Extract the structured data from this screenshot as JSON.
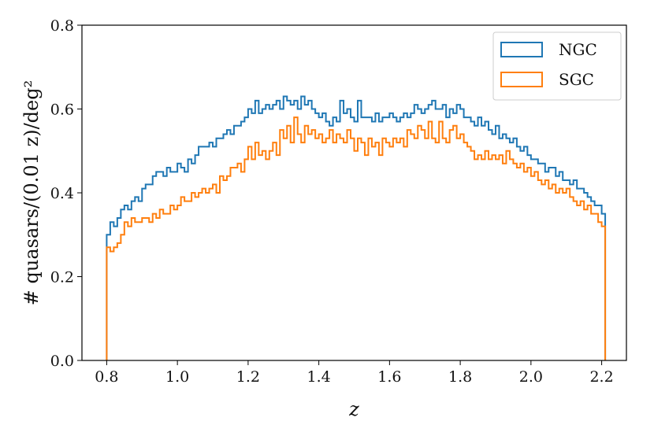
{
  "chart_data": {
    "type": "histogram-step",
    "xlabel": "z",
    "ylabel": "# quasars/(0.01 z)/deg²",
    "xlim": [
      0.73,
      2.27
    ],
    "ylim": [
      0.0,
      0.8
    ],
    "xticks": [
      "0.8",
      "1.0",
      "1.2",
      "1.4",
      "1.6",
      "1.8",
      "2.0",
      "2.2"
    ],
    "yticks": [
      "0.0",
      "0.2",
      "0.4",
      "0.6",
      "0.8"
    ],
    "bin_start": 0.8,
    "bin_width": 0.01,
    "grid": false,
    "legend_position": "top-right",
    "series": [
      {
        "name": "NGC",
        "color": "#1f77b4",
        "values": [
          0.3,
          0.33,
          0.32,
          0.34,
          0.36,
          0.37,
          0.36,
          0.38,
          0.39,
          0.38,
          0.41,
          0.42,
          0.42,
          0.44,
          0.45,
          0.45,
          0.44,
          0.46,
          0.45,
          0.45,
          0.47,
          0.46,
          0.45,
          0.48,
          0.47,
          0.49,
          0.51,
          0.51,
          0.51,
          0.52,
          0.51,
          0.53,
          0.53,
          0.54,
          0.55,
          0.54,
          0.56,
          0.56,
          0.57,
          0.58,
          0.6,
          0.59,
          0.62,
          0.59,
          0.6,
          0.61,
          0.6,
          0.61,
          0.62,
          0.6,
          0.63,
          0.62,
          0.61,
          0.62,
          0.6,
          0.63,
          0.61,
          0.62,
          0.6,
          0.59,
          0.58,
          0.59,
          0.57,
          0.56,
          0.58,
          0.57,
          0.62,
          0.59,
          0.6,
          0.58,
          0.57,
          0.62,
          0.58,
          0.58,
          0.58,
          0.57,
          0.59,
          0.57,
          0.58,
          0.58,
          0.59,
          0.58,
          0.57,
          0.58,
          0.59,
          0.58,
          0.59,
          0.61,
          0.6,
          0.59,
          0.6,
          0.61,
          0.62,
          0.6,
          0.6,
          0.61,
          0.58,
          0.6,
          0.59,
          0.61,
          0.6,
          0.58,
          0.58,
          0.57,
          0.56,
          0.58,
          0.56,
          0.57,
          0.55,
          0.54,
          0.56,
          0.53,
          0.54,
          0.53,
          0.52,
          0.53,
          0.51,
          0.5,
          0.51,
          0.49,
          0.48,
          0.48,
          0.47,
          0.47,
          0.45,
          0.46,
          0.46,
          0.44,
          0.45,
          0.43,
          0.43,
          0.42,
          0.43,
          0.41,
          0.41,
          0.4,
          0.39,
          0.38,
          0.37,
          0.37,
          0.35
        ]
      },
      {
        "name": "SGC",
        "color": "#ff7f0e",
        "values": [
          0.27,
          0.26,
          0.27,
          0.28,
          0.3,
          0.33,
          0.32,
          0.34,
          0.33,
          0.33,
          0.34,
          0.34,
          0.33,
          0.35,
          0.34,
          0.36,
          0.35,
          0.35,
          0.37,
          0.36,
          0.37,
          0.39,
          0.38,
          0.38,
          0.4,
          0.39,
          0.4,
          0.41,
          0.4,
          0.41,
          0.42,
          0.4,
          0.44,
          0.43,
          0.44,
          0.46,
          0.46,
          0.47,
          0.45,
          0.48,
          0.51,
          0.48,
          0.52,
          0.49,
          0.5,
          0.48,
          0.5,
          0.52,
          0.49,
          0.55,
          0.53,
          0.56,
          0.52,
          0.58,
          0.54,
          0.52,
          0.56,
          0.54,
          0.55,
          0.53,
          0.54,
          0.52,
          0.53,
          0.55,
          0.52,
          0.54,
          0.53,
          0.52,
          0.55,
          0.53,
          0.5,
          0.53,
          0.52,
          0.49,
          0.53,
          0.51,
          0.52,
          0.49,
          0.53,
          0.52,
          0.51,
          0.53,
          0.52,
          0.53,
          0.51,
          0.55,
          0.54,
          0.53,
          0.56,
          0.55,
          0.53,
          0.57,
          0.53,
          0.52,
          0.57,
          0.53,
          0.52,
          0.55,
          0.56,
          0.53,
          0.54,
          0.52,
          0.51,
          0.5,
          0.48,
          0.49,
          0.48,
          0.5,
          0.48,
          0.49,
          0.48,
          0.49,
          0.47,
          0.5,
          0.48,
          0.47,
          0.46,
          0.47,
          0.45,
          0.46,
          0.44,
          0.45,
          0.43,
          0.42,
          0.43,
          0.41,
          0.42,
          0.4,
          0.41,
          0.4,
          0.41,
          0.39,
          0.38,
          0.37,
          0.38,
          0.36,
          0.37,
          0.35,
          0.35,
          0.33,
          0.32
        ]
      }
    ]
  }
}
